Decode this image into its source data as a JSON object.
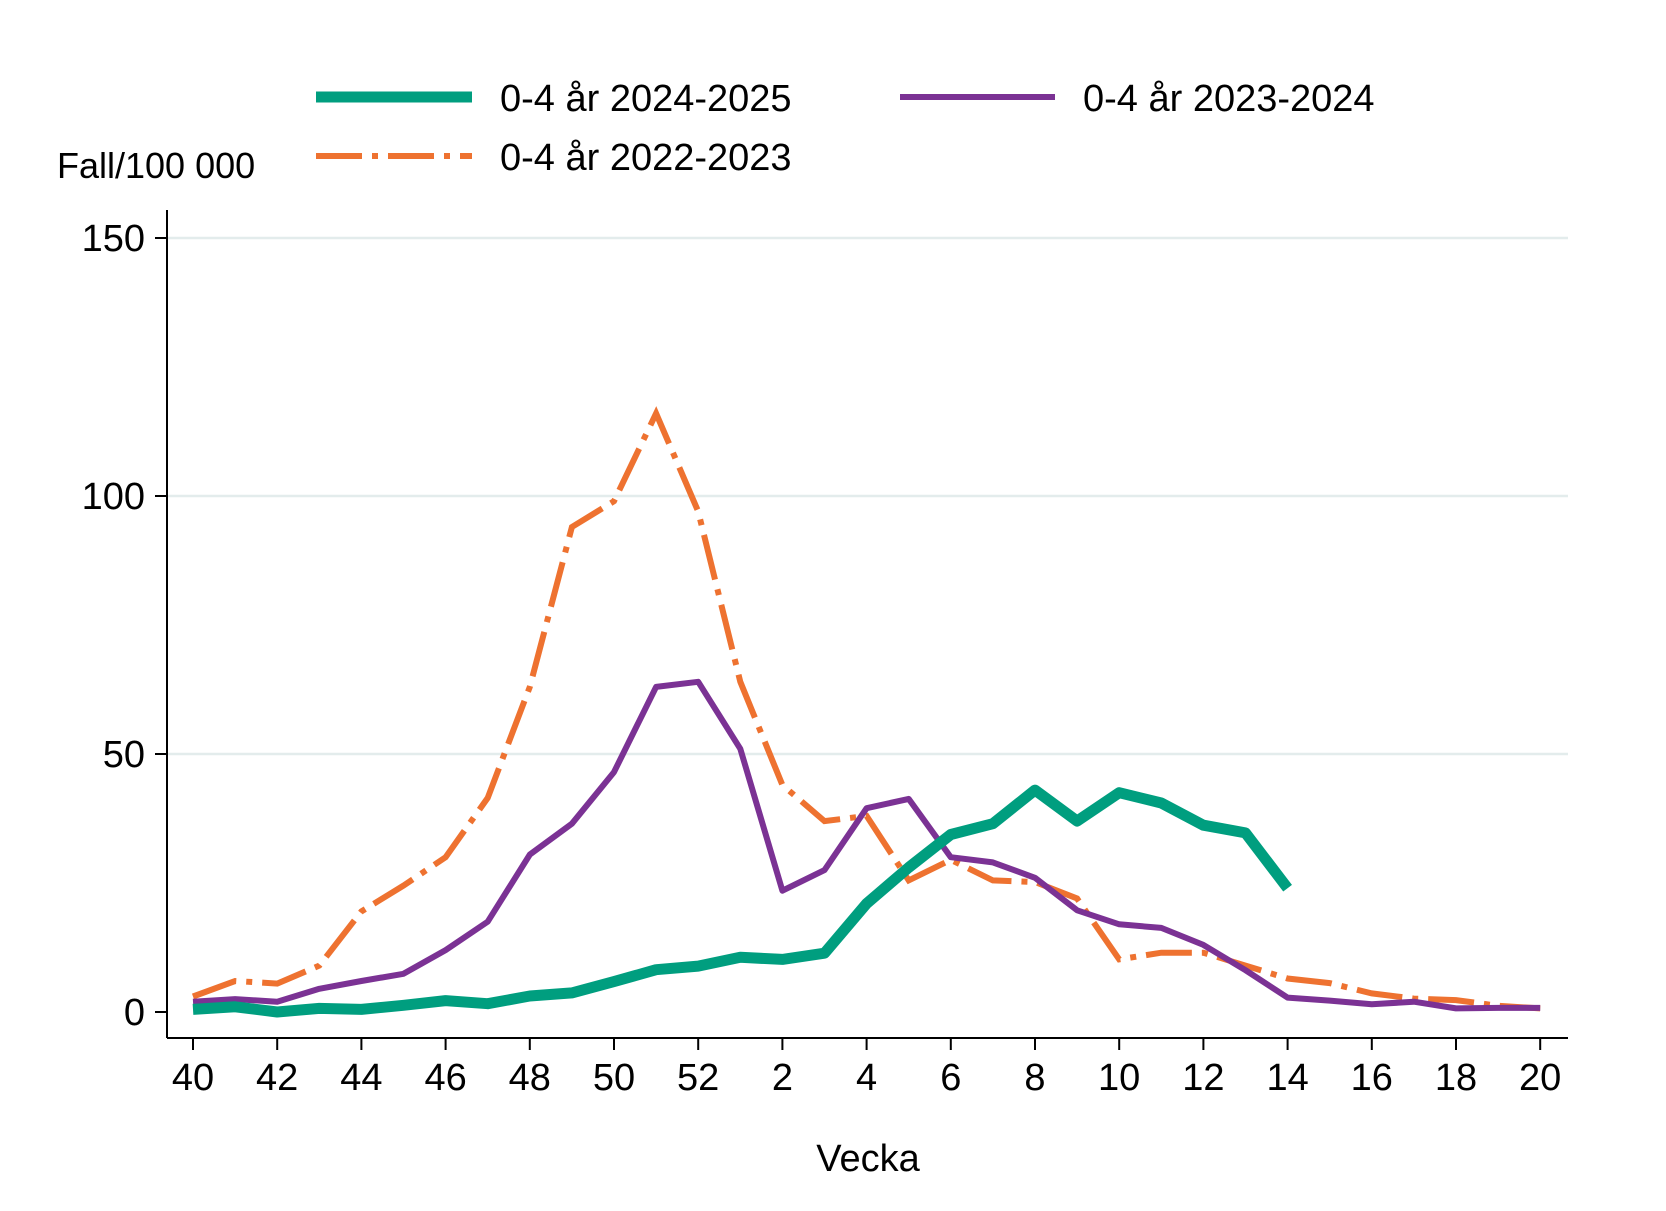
{
  "chart_data": {
    "type": "line",
    "title": "",
    "xlabel": "Vecka",
    "ylabel": "Fall/100 000",
    "ylim": [
      0,
      155
    ],
    "yticks": [
      0,
      50,
      100,
      150
    ],
    "grid": true,
    "weeks": [
      40,
      41,
      42,
      43,
      44,
      45,
      46,
      47,
      48,
      49,
      50,
      51,
      52,
      1,
      2,
      3,
      4,
      5,
      6,
      7,
      8,
      9,
      10,
      11,
      12,
      13,
      14,
      15,
      16,
      17,
      18,
      19,
      20
    ],
    "xtick_labels": [
      "40",
      "42",
      "44",
      "46",
      "48",
      "50",
      "52",
      "2",
      "4",
      "6",
      "8",
      "10",
      "12",
      "14",
      "16",
      "18",
      "20"
    ],
    "legend_position": "top",
    "series": [
      {
        "name": "0-4 år 2024-2025",
        "color": "#009E7F",
        "style": "solid-thick",
        "values": [
          0.5,
          1,
          0,
          0.7,
          0.5,
          1.3,
          2.2,
          1.6,
          3.1,
          3.7,
          5.9,
          8.2,
          8.9,
          10.6,
          10.2,
          11.4,
          21,
          28,
          34.4,
          36.5,
          43,
          37,
          42.5,
          40.5,
          36.2,
          34.7,
          24
        ]
      },
      {
        "name": "0-4 år 2023-2024",
        "color": "#7B3294",
        "style": "solid",
        "values": [
          2,
          2.5,
          2,
          4.5,
          6,
          7.4,
          12,
          17.5,
          30.5,
          36.5,
          46.5,
          63,
          64,
          51,
          23.5,
          27.5,
          39.5,
          41.3,
          30,
          29,
          26,
          19.7,
          17,
          16.3,
          13,
          8.1,
          2.8,
          2.2,
          1.5,
          2,
          0.7,
          0.8,
          0.8
        ]
      },
      {
        "name": "0-4 år 2022-2023",
        "color": "#EE7230",
        "style": "dash-dot",
        "values": [
          3,
          6,
          5.5,
          9,
          19.5,
          24.5,
          30,
          41.5,
          63,
          94,
          99,
          116,
          97,
          64,
          44,
          37,
          38,
          25.5,
          29.5,
          25.5,
          25.2,
          22,
          10.2,
          11.5,
          11.5,
          9,
          6.5,
          5.6,
          3.6,
          2.6,
          2.3,
          1.2,
          0.7
        ]
      }
    ]
  }
}
